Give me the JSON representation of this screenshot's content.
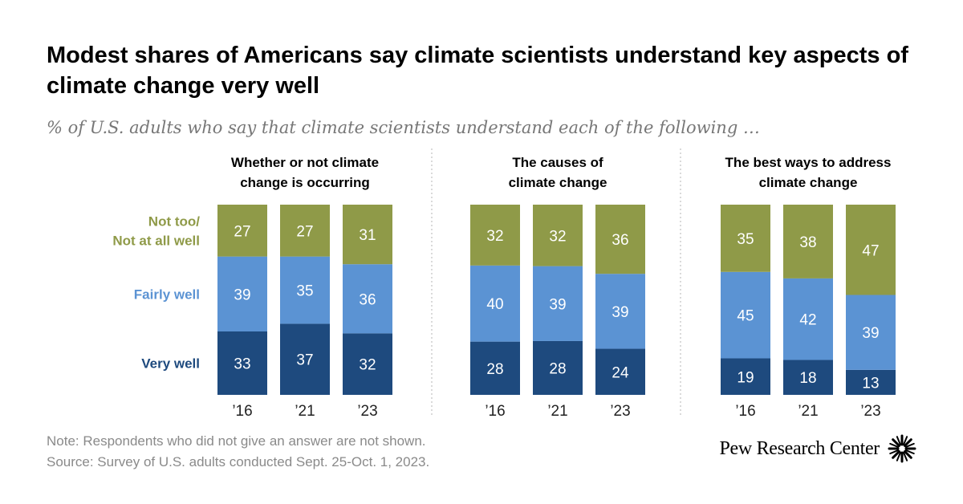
{
  "title": "Modest shares of Americans say climate scientists understand key aspects of climate change very well",
  "subtitle": "% of U.S. adults who say that climate scientists understand each of the following …",
  "note": "Note: Respondents who did not give an answer are not shown.",
  "source": "Source: Survey of U.S. adults conducted Sept. 25-Oct. 1, 2023.",
  "brand": "Pew Research Center",
  "colors": {
    "very_well": "#1e4a7e",
    "fairly_well": "#5b93d3",
    "not_well": "#8f9a48"
  },
  "chart_data": {
    "type": "bar",
    "stacked": true,
    "legend_labels": [
      {
        "key": "not_well",
        "lines": [
          "Not too/",
          "Not at all well"
        ]
      },
      {
        "key": "fairly_well",
        "lines": [
          "Fairly well"
        ]
      },
      {
        "key": "very_well",
        "lines": [
          "Very well"
        ]
      }
    ],
    "panels": [
      {
        "title_lines": [
          "Whether or not climate",
          "change is occurring"
        ],
        "categories": [
          "’16",
          "’21",
          "’23"
        ],
        "series": [
          {
            "name": "Very well",
            "key": "very_well",
            "values": [
              33,
              37,
              32
            ]
          },
          {
            "name": "Fairly well",
            "key": "fairly_well",
            "values": [
              39,
              35,
              36
            ]
          },
          {
            "name": "Not too/Not at all well",
            "key": "not_well",
            "values": [
              27,
              27,
              31
            ]
          }
        ]
      },
      {
        "title_lines": [
          "The causes of",
          "climate change"
        ],
        "categories": [
          "’16",
          "’21",
          "’23"
        ],
        "series": [
          {
            "name": "Very well",
            "key": "very_well",
            "values": [
              28,
              28,
              24
            ]
          },
          {
            "name": "Fairly well",
            "key": "fairly_well",
            "values": [
              40,
              39,
              39
            ]
          },
          {
            "name": "Not too/Not at all well",
            "key": "not_well",
            "values": [
              32,
              32,
              36
            ]
          }
        ]
      },
      {
        "title_lines": [
          "The best ways to address",
          "climate change"
        ],
        "categories": [
          "’16",
          "’21",
          "’23"
        ],
        "series": [
          {
            "name": "Very well",
            "key": "very_well",
            "values": [
              19,
              18,
              13
            ]
          },
          {
            "name": "Fairly well",
            "key": "fairly_well",
            "values": [
              45,
              42,
              39
            ]
          },
          {
            "name": "Not too/Not at all well",
            "key": "not_well",
            "values": [
              35,
              38,
              47
            ]
          }
        ]
      }
    ]
  }
}
